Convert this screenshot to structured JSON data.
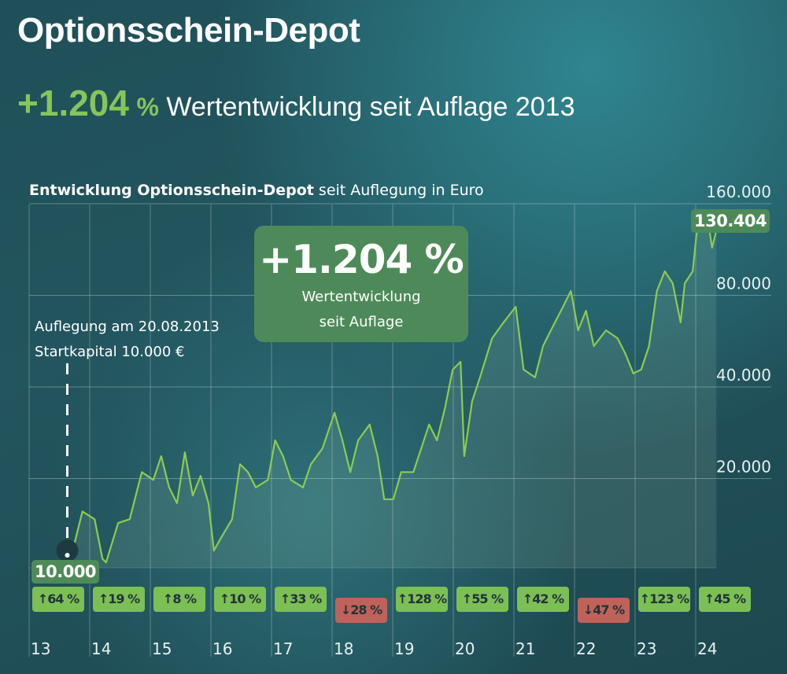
{
  "title": "Optionsschein-Depot",
  "subtitle": {
    "value": "+1.204",
    "pct": "%",
    "text": "Wertentwicklung seit Auflage 2013"
  },
  "colors": {
    "line": "#8ccc4e",
    "badge_up": "#7cbf55",
    "badge_down": "#c0625a",
    "label_bg": "#4e8a59"
  },
  "chart_data": {
    "type": "line",
    "title_bold": "Entwicklung Optionsschein-Depot",
    "title_rest": " seit Auflegung in Euro",
    "y_scale": "log2",
    "ylim": [
      10000,
      160000
    ],
    "y_ticks": [
      "160.000",
      "80.000",
      "40.000",
      "20.000"
    ],
    "y_tick_values": [
      160000,
      80000,
      40000,
      20000
    ],
    "x_ticks": [
      "13",
      "14",
      "15",
      "16",
      "17",
      "18",
      "19",
      "20",
      "21",
      "22",
      "23",
      "24"
    ],
    "xlim": [
      2013,
      2024.4
    ],
    "grid": true,
    "start_label": "10.000",
    "end_label": "130.404",
    "highlight": {
      "value": "+1.204 %",
      "line1": "Wertentwicklung",
      "line2": "seit Auflage"
    },
    "annotation": {
      "line1": "Auflegung am 20.08.2013",
      "line2": "Startkapital 10.000 €"
    },
    "annual_returns": [
      {
        "year": "13",
        "label": "64 %",
        "dir": "up"
      },
      {
        "year": "14",
        "label": "19 %",
        "dir": "up"
      },
      {
        "year": "15",
        "label": "8 %",
        "dir": "up"
      },
      {
        "year": "16",
        "label": "10 %",
        "dir": "up"
      },
      {
        "year": "17",
        "label": "33 %",
        "dir": "up"
      },
      {
        "year": "18",
        "label": "28 %",
        "dir": "down"
      },
      {
        "year": "19",
        "label": "128 %",
        "dir": "up"
      },
      {
        "year": "20",
        "label": "55 %",
        "dir": "up"
      },
      {
        "year": "21",
        "label": "42 %",
        "dir": "up"
      },
      {
        "year": "22",
        "label": "47 %",
        "dir": "down"
      },
      {
        "year": "23",
        "label": "123 %",
        "dir": "up"
      },
      {
        "year": "24",
        "label": "45 %",
        "dir": "up"
      }
    ],
    "x": [
      2013.63,
      2013.75,
      2013.88,
      2014.08,
      2014.21,
      2014.27,
      2014.47,
      2014.66,
      2014.86,
      2015.05,
      2015.18,
      2015.31,
      2015.44,
      2015.57,
      2015.7,
      2015.83,
      2015.96,
      2016.05,
      2016.16,
      2016.35,
      2016.48,
      2016.61,
      2016.74,
      2016.94,
      2017.06,
      2017.19,
      2017.32,
      2017.52,
      2017.65,
      2017.84,
      2018.04,
      2018.17,
      2018.3,
      2018.43,
      2018.62,
      2018.75,
      2018.86,
      2019.01,
      2019.14,
      2019.34,
      2019.47,
      2019.6,
      2019.73,
      2019.86,
      2019.99,
      2020.12,
      2020.18,
      2020.31,
      2020.44,
      2020.64,
      2020.83,
      2021.03,
      2021.16,
      2021.35,
      2021.48,
      2021.61,
      2021.81,
      2021.94,
      2022.06,
      2022.19,
      2022.32,
      2022.52,
      2022.71,
      2022.84,
      2022.97,
      2023.1,
      2023.23,
      2023.36,
      2023.49,
      2023.62,
      2023.75,
      2023.82,
      2023.95,
      2024.01,
      2024.08,
      2024.21,
      2024.27,
      2024.34
    ],
    "values": [
      10000,
      12300,
      15600,
      14700,
      10900,
      10600,
      14300,
      14700,
      21000,
      19800,
      23700,
      18700,
      16600,
      24400,
      17600,
      20400,
      16600,
      11600,
      12700,
      14700,
      22300,
      21000,
      18700,
      19800,
      26700,
      23700,
      19800,
      18700,
      22300,
      25100,
      32900,
      26700,
      21000,
      26700,
      30100,
      23700,
      17100,
      17100,
      21000,
      21000,
      25100,
      30100,
      26700,
      33900,
      45600,
      48400,
      23700,
      35900,
      43000,
      57800,
      65200,
      73400,
      45600,
      43000,
      54500,
      61400,
      73400,
      82700,
      61400,
      71200,
      54500,
      61400,
      57800,
      51400,
      44300,
      45600,
      54500,
      82700,
      95900,
      87700,
      65200,
      87700,
      95900,
      125400,
      149900,
      137100,
      114700,
      130404
    ]
  }
}
